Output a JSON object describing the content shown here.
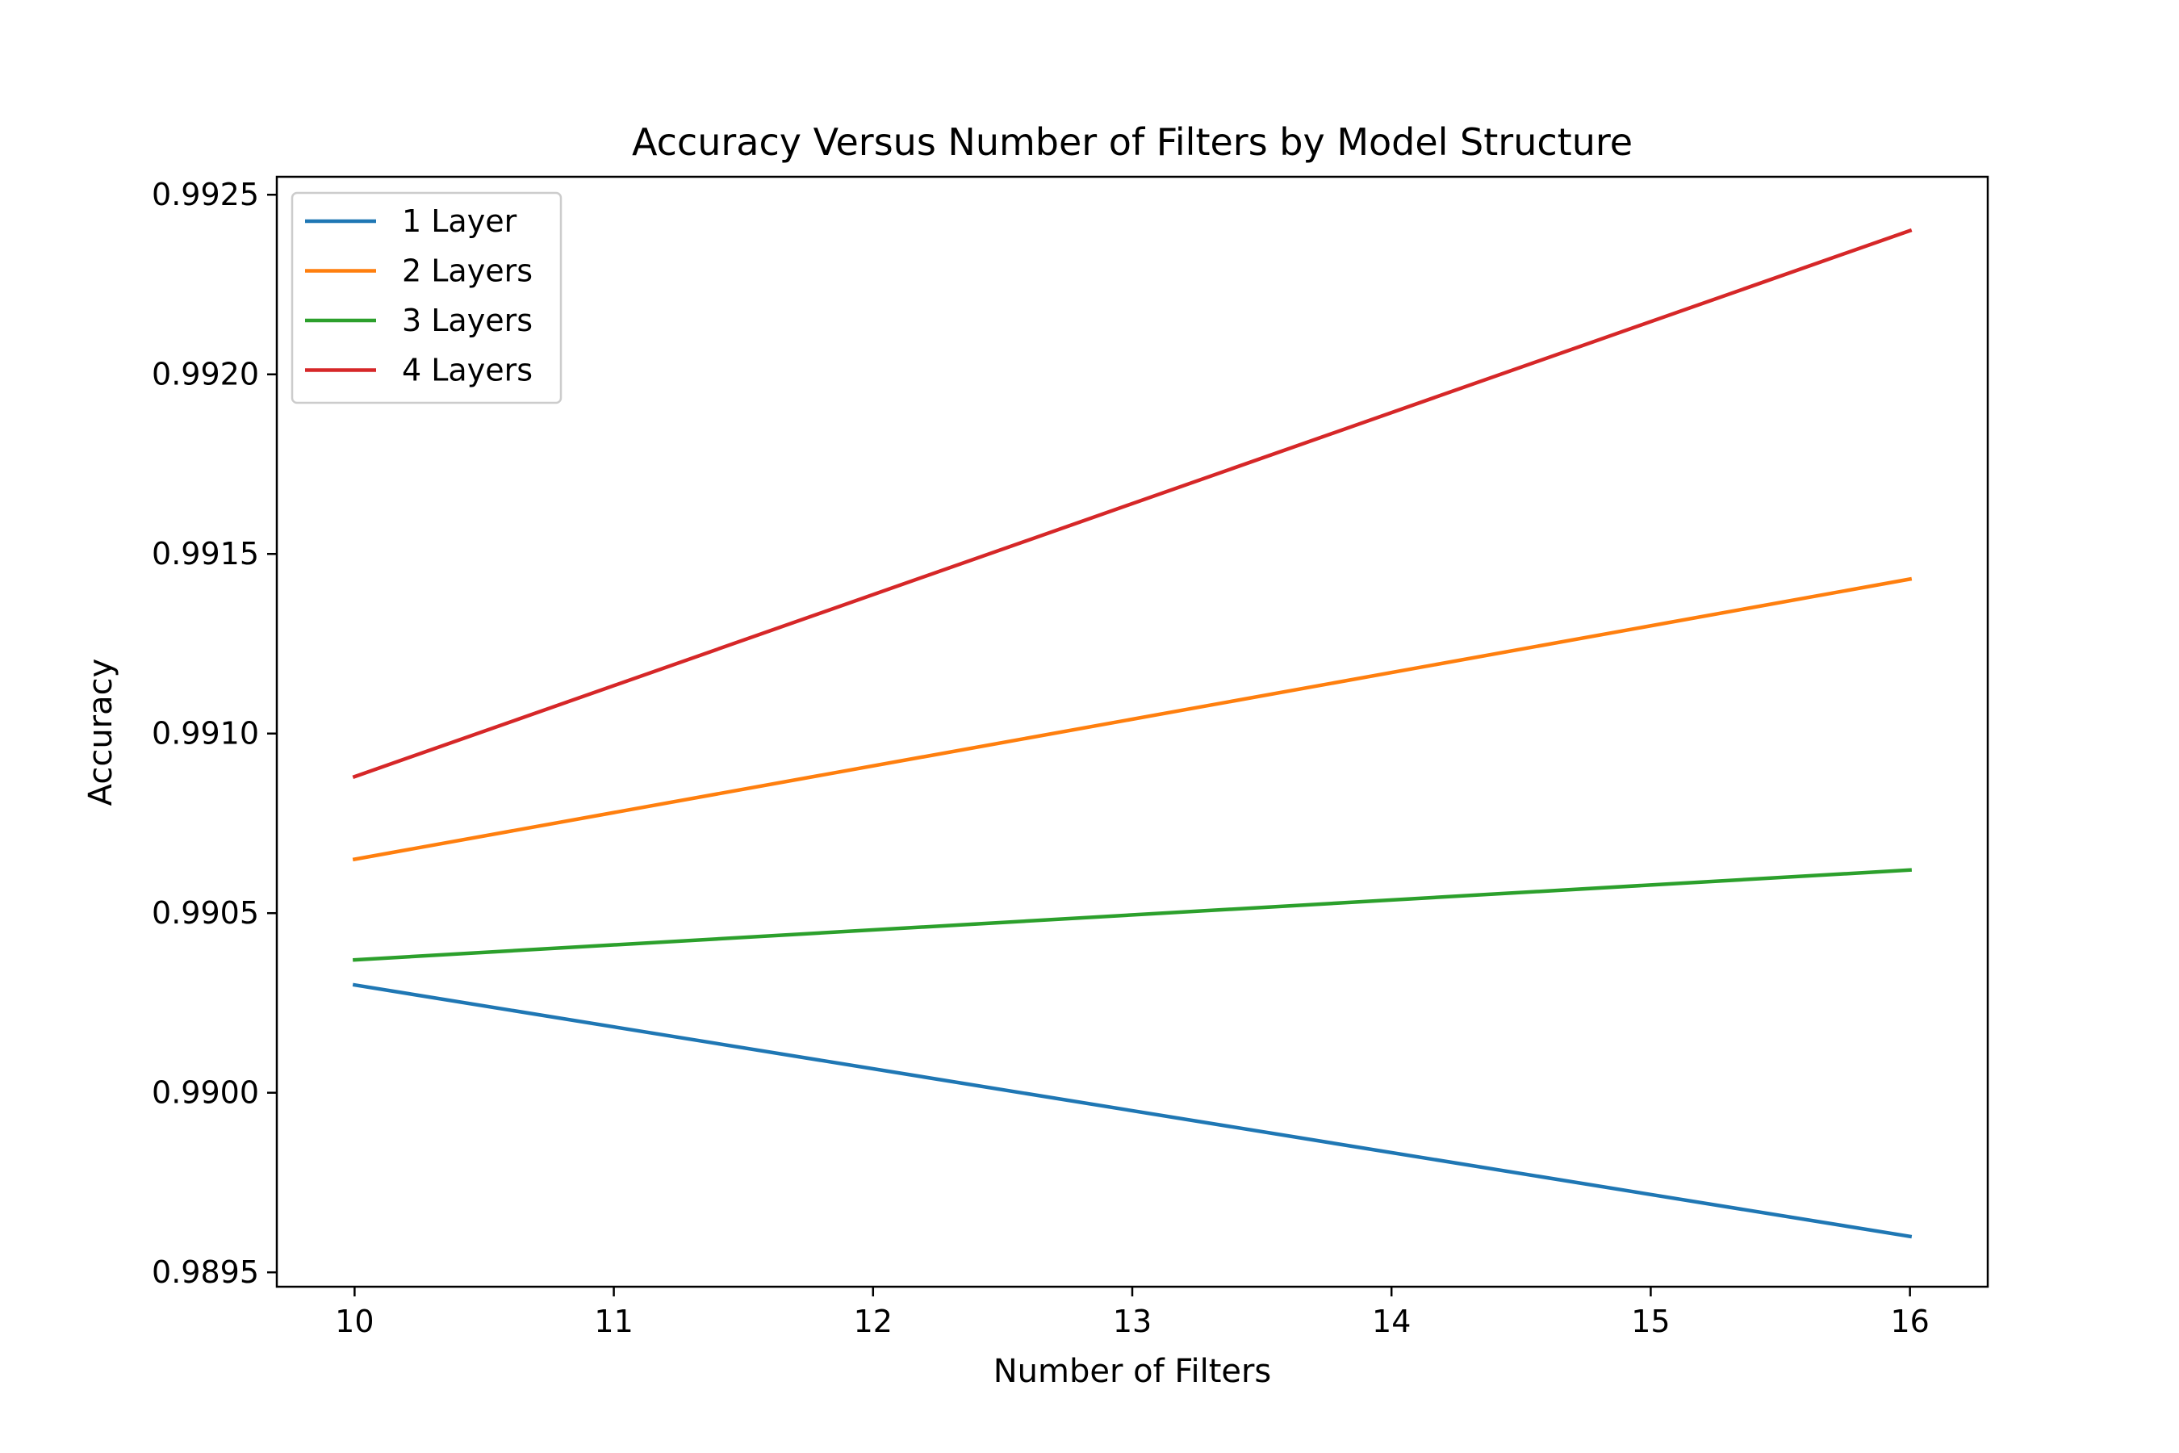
{
  "chart_data": {
    "type": "line",
    "title": "Accuracy Versus Number of Filters by Model Structure",
    "xlabel": "Number of Filters",
    "ylabel": "Accuracy",
    "x": [
      10,
      16
    ],
    "xlim": [
      9.7,
      16.3
    ],
    "ylim": [
      0.98946,
      0.99255
    ],
    "xticks": [
      10,
      11,
      12,
      13,
      14,
      15,
      16
    ],
    "yticks": [
      0.9895,
      0.99,
      0.9905,
      0.991,
      0.9915,
      0.992,
      0.9925
    ],
    "ytick_labels": [
      "0.9895",
      "0.9900",
      "0.9905",
      "0.9910",
      "0.9915",
      "0.9920",
      "0.9925"
    ],
    "grid": false,
    "legend_position": "top-left",
    "series": [
      {
        "name": "1 Layer",
        "color": "#1f77b4",
        "values": [
          0.9903,
          0.9896
        ]
      },
      {
        "name": "2 Layers",
        "color": "#ff7f0e",
        "values": [
          0.99065,
          0.99143
        ]
      },
      {
        "name": "3 Layers",
        "color": "#2ca02c",
        "values": [
          0.99037,
          0.99062
        ]
      },
      {
        "name": "4 Layers",
        "color": "#d62728",
        "values": [
          0.99088,
          0.9924
        ]
      }
    ]
  }
}
